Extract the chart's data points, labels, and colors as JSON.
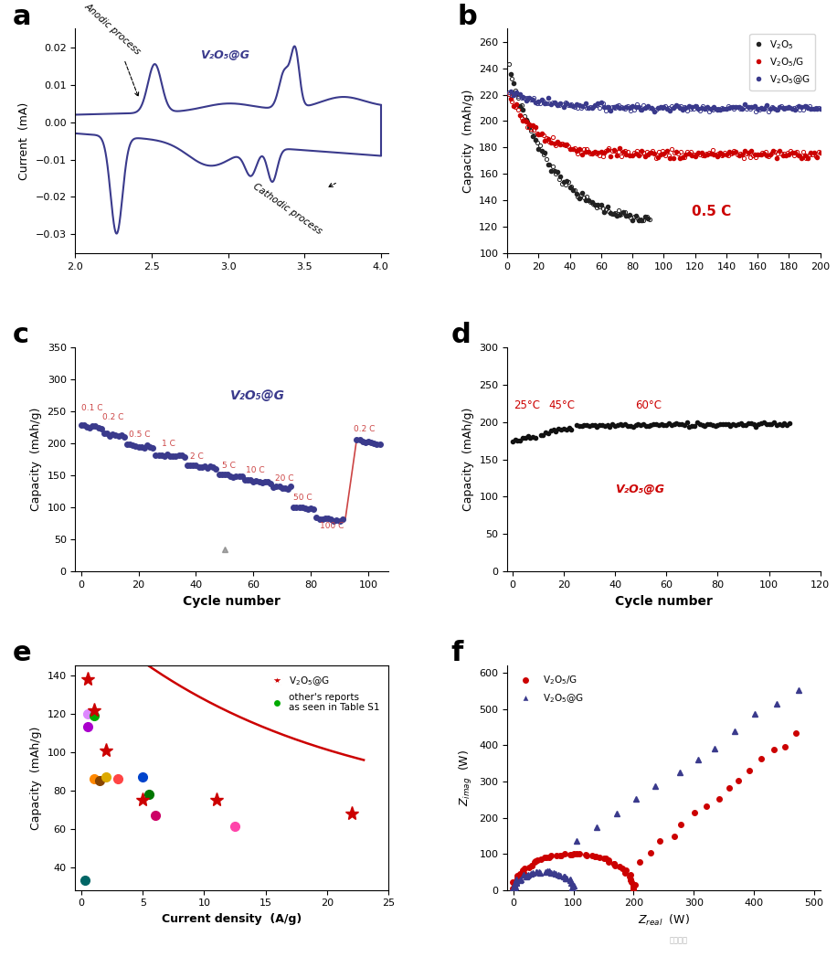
{
  "panel_labels": [
    "a",
    "b",
    "c",
    "d",
    "e",
    "f"
  ],
  "panel_label_fontsize": 22,
  "bg_color": "#ffffff",
  "panel_a": {
    "ylabel": "Current  (mA)",
    "xlim": [
      2.0,
      4.05
    ],
    "ylim": [
      -0.035,
      0.025
    ],
    "yticks": [
      -0.03,
      -0.02,
      -0.01,
      0.0,
      0.01,
      0.02
    ],
    "xticks": [
      2.0,
      2.5,
      3.0,
      3.5,
      4.0
    ],
    "label": "V₂O₅@G",
    "color": "#3a3a8c"
  },
  "panel_b": {
    "ylabel": "Capacity  (mAh/g)",
    "ylim": [
      100,
      270
    ],
    "xlim": [
      0,
      200
    ],
    "yticks": [
      100,
      120,
      140,
      160,
      180,
      200,
      220,
      240,
      260
    ],
    "xticks": [
      0,
      20,
      40,
      60,
      80,
      100,
      120,
      140,
      160,
      180,
      200
    ],
    "annotation": "0.5 C",
    "annotation_color": "#cc0000",
    "v2o5_color": "#222222",
    "v2o5g_color": "#cc0000",
    "v2o5atg_color": "#3a3a8c"
  },
  "panel_c": {
    "xlabel": "Cycle number",
    "ylabel": "Capacity  (mAh/g)",
    "ylim": [
      0,
      350
    ],
    "xlim": [
      -2,
      107
    ],
    "yticks": [
      0,
      50,
      100,
      150,
      200,
      250,
      300,
      350
    ],
    "xticks": [
      0,
      20,
      40,
      60,
      80,
      100
    ],
    "label": "V₂O₅@G",
    "label_color": "#3a3a8c",
    "rate_label_color": "#cc4444",
    "dot_color": "#3a3a8c",
    "line_color": "#cc4444"
  },
  "panel_d": {
    "xlabel": "Cycle number",
    "ylabel": "Capacity  (mAh/g)",
    "ylim": [
      0,
      300
    ],
    "xlim": [
      -2,
      120
    ],
    "yticks": [
      0,
      50,
      100,
      150,
      200,
      250,
      300
    ],
    "xticks": [
      0,
      20,
      40,
      60,
      80,
      100,
      120
    ],
    "label": "V₂O₅@G",
    "label_color": "#cc0000",
    "temp_label_color": "#cc0000",
    "dot_color": "#111111"
  },
  "panel_e": {
    "xlabel": "Current density  (A/g)",
    "ylabel": "Capacity  (mAh/g)",
    "ylim": [
      28,
      145
    ],
    "xlim": [
      -0.5,
      25
    ],
    "yticks": [
      40,
      60,
      80,
      100,
      120,
      140
    ],
    "xticks": [
      0,
      5,
      10,
      15,
      20,
      25
    ],
    "star_color": "#cc0000",
    "curve_color": "#cc0000",
    "star_x": [
      0.5,
      1.0,
      2.0,
      5.0,
      11.0,
      22.0
    ],
    "star_y": [
      138,
      122,
      101,
      75,
      75,
      68
    ],
    "other_x": [
      0.5,
      0.5,
      1.0,
      1.0,
      1.5,
      2.0,
      3.0,
      5.0,
      5.5,
      6.0,
      12.5,
      0.3
    ],
    "other_y": [
      120,
      113,
      119,
      86,
      85,
      87,
      86,
      87,
      78,
      67,
      61,
      33
    ],
    "other_colors": [
      "#dd88ff",
      "#aa00cc",
      "#00aa00",
      "#ff8800",
      "#884400",
      "#ddaa00",
      "#ff4444",
      "#0044cc",
      "#007700",
      "#cc0066",
      "#ff44aa",
      "#006666"
    ]
  },
  "panel_f": {
    "xlabel": "Z_real  (W)",
    "ylabel": "Z_imag  (W)",
    "ylim": [
      0,
      620
    ],
    "xlim": [
      -10,
      510
    ],
    "yticks": [
      0,
      100,
      200,
      300,
      400,
      500,
      600
    ],
    "xticks": [
      0,
      100,
      200,
      300,
      400,
      500
    ],
    "red_color": "#cc0000",
    "blue_color": "#3a3a8c"
  }
}
